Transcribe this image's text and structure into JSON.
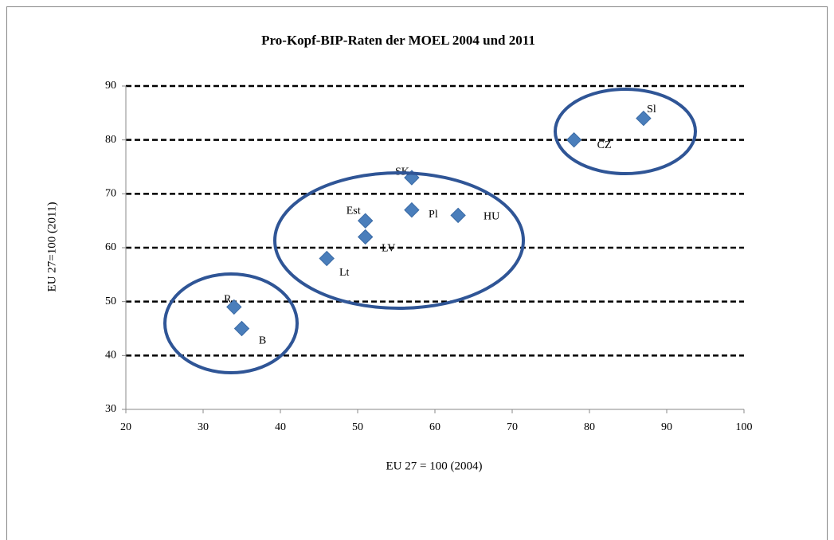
{
  "chart_data": {
    "type": "scatter",
    "title": "Pro-Kopf-BIP-Raten der MOEL  2004 und 2011",
    "x_label": "EU 27 = 100  (2004)",
    "y_label": "EU 27=100 (2011)",
    "x": [
      34,
      35,
      46,
      51,
      51,
      57,
      57,
      63,
      78,
      87
    ],
    "values": [
      49,
      45,
      58,
      62,
      65,
      67,
      73,
      66,
      80,
      84
    ],
    "point_labels": [
      "R",
      "B",
      "Lt",
      "LV",
      "Est",
      "Pl",
      "SK",
      "HU",
      "CZ",
      "Sl"
    ],
    "color": "#4a7ebb",
    "xlim": [
      20,
      100
    ],
    "xticks": [
      20,
      30,
      40,
      50,
      60,
      70,
      80,
      90,
      100
    ],
    "ylim": [
      30,
      90
    ],
    "yticks": [
      30,
      40,
      50,
      60,
      70,
      80,
      90
    ],
    "grid": true
  }
}
